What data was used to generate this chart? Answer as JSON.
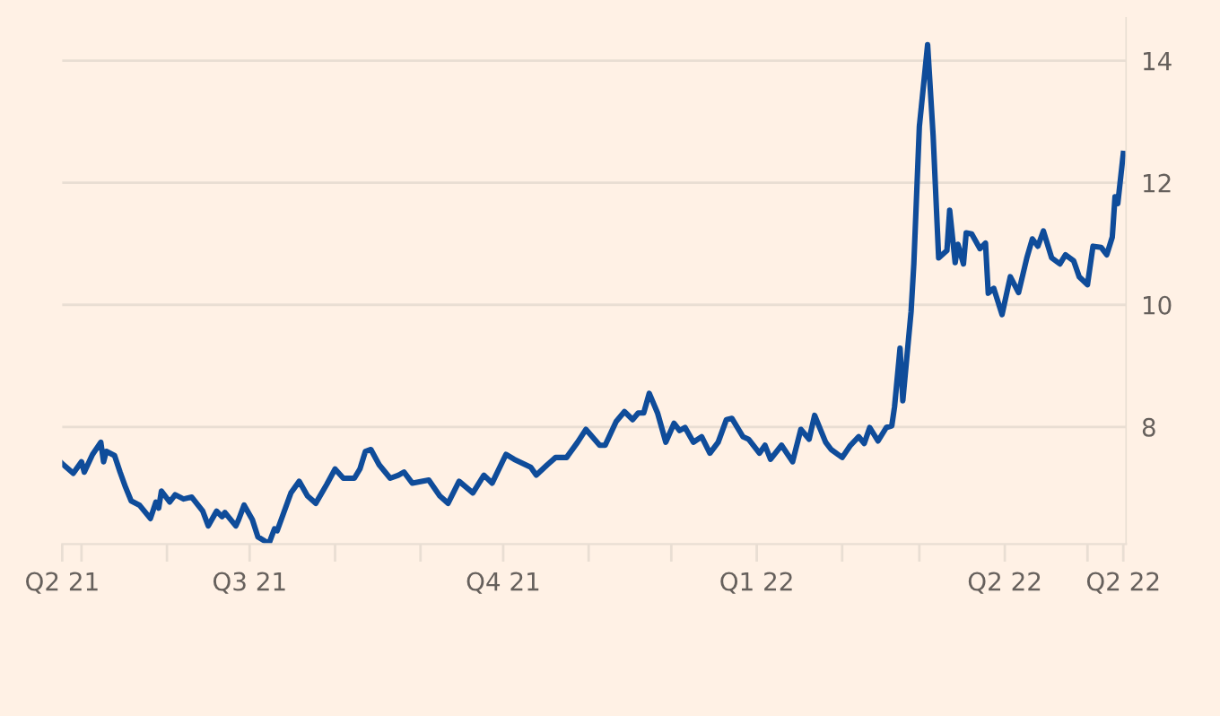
{
  "chart_data": {
    "type": "line",
    "x": [
      "2021-04-24",
      "2021-04-28",
      "2021-05-01",
      "2021-05-02",
      "2021-05-05",
      "2021-05-08",
      "2021-05-09",
      "2021-05-10",
      "2021-05-13",
      "2021-05-15",
      "2021-05-17",
      "2021-05-19",
      "2021-05-22",
      "2021-05-26",
      "2021-05-28",
      "2021-05-29",
      "2021-05-30",
      "2021-06-02",
      "2021-06-04",
      "2021-06-07",
      "2021-06-10",
      "2021-06-14",
      "2021-06-16",
      "2021-06-19",
      "2021-06-21",
      "2021-06-22",
      "2021-06-26",
      "2021-06-27",
      "2021-06-29",
      "2021-07-02",
      "2021-07-04",
      "2021-07-08",
      "2021-07-10",
      "2021-07-11",
      "2021-07-16",
      "2021-07-19",
      "2021-07-22",
      "2021-07-25",
      "2021-07-29",
      "2021-08-01",
      "2021-08-04",
      "2021-08-08",
      "2021-08-10",
      "2021-08-12",
      "2021-08-14",
      "2021-08-17",
      "2021-08-21",
      "2021-08-24",
      "2021-08-26",
      "2021-08-29",
      "2021-09-04",
      "2021-09-08",
      "2021-09-11",
      "2021-09-15",
      "2021-09-20",
      "2021-09-24",
      "2021-09-27",
      "2021-10-02",
      "2021-10-05",
      "2021-10-11",
      "2021-10-13",
      "2021-10-17",
      "2021-10-20",
      "2021-10-24",
      "2021-10-28",
      "2021-10-31",
      "2021-11-05",
      "2021-11-07",
      "2021-11-11",
      "2021-11-14",
      "2021-11-17",
      "2021-11-19",
      "2021-11-21",
      "2021-11-23",
      "2021-11-26",
      "2021-11-29",
      "2021-12-02",
      "2021-12-04",
      "2021-12-06",
      "2021-12-09",
      "2021-12-12",
      "2021-12-15",
      "2021-12-18",
      "2021-12-21",
      "2021-12-23",
      "2021-12-27",
      "2021-12-29",
      "2022-01-02",
      "2022-01-04",
      "2022-01-06",
      "2022-01-10",
      "2022-01-14",
      "2022-01-17",
      "2022-01-20",
      "2022-01-22",
      "2022-01-26",
      "2022-01-28",
      "2022-02-01",
      "2022-02-04",
      "2022-02-07",
      "2022-02-09",
      "2022-02-11",
      "2022-02-14",
      "2022-02-17",
      "2022-02-19",
      "2022-02-20",
      "2022-02-22",
      "2022-02-23",
      "2022-02-26",
      "2022-02-27",
      "2022-03-01",
      "2022-03-04",
      "2022-03-06",
      "2022-03-08",
      "2022-03-11",
      "2022-03-12",
      "2022-03-14",
      "2022-03-15",
      "2022-03-17",
      "2022-03-18",
      "2022-03-20",
      "2022-03-23",
      "2022-03-25",
      "2022-03-26",
      "2022-03-28",
      "2022-03-31",
      "2022-04-03",
      "2022-04-06",
      "2022-04-09",
      "2022-04-11",
      "2022-04-13",
      "2022-04-15",
      "2022-04-18",
      "2022-04-21",
      "2022-04-23",
      "2022-04-26",
      "2022-04-28",
      "2022-05-01",
      "2022-05-03",
      "2022-05-06",
      "2022-05-08",
      "2022-05-10",
      "2022-05-11",
      "2022-05-12",
      "2022-05-14"
    ],
    "series": [
      {
        "color": "#0f4c9a",
        "values": [
          7.4,
          7.24,
          7.43,
          7.26,
          7.55,
          7.75,
          7.43,
          7.6,
          7.53,
          7.26,
          7.01,
          6.79,
          6.72,
          6.5,
          6.77,
          6.67,
          6.95,
          6.77,
          6.89,
          6.82,
          6.85,
          6.62,
          6.38,
          6.62,
          6.53,
          6.6,
          6.38,
          6.48,
          6.72,
          6.48,
          6.2,
          6.09,
          6.33,
          6.3,
          6.92,
          7.11,
          6.87,
          6.75,
          7.06,
          7.31,
          7.16,
          7.16,
          7.31,
          7.6,
          7.63,
          7.38,
          7.16,
          7.21,
          7.26,
          7.08,
          7.13,
          6.87,
          6.75,
          7.11,
          6.92,
          7.21,
          7.08,
          7.55,
          7.47,
          7.34,
          7.21,
          7.38,
          7.5,
          7.5,
          7.75,
          7.96,
          7.7,
          7.7,
          8.09,
          8.25,
          8.12,
          8.23,
          8.23,
          8.55,
          8.23,
          7.75,
          8.06,
          7.94,
          7.99,
          7.75,
          7.84,
          7.57,
          7.75,
          8.12,
          8.14,
          7.84,
          7.8,
          7.57,
          7.7,
          7.47,
          7.7,
          7.43,
          7.96,
          7.8,
          8.19,
          7.75,
          7.63,
          7.5,
          7.7,
          7.84,
          7.73,
          7.99,
          7.77,
          7.99,
          8.02,
          8.33,
          9.29,
          8.43,
          9.89,
          10.67,
          12.92,
          14.26,
          12.77,
          10.77,
          10.89,
          11.55,
          10.69,
          10.99,
          10.67,
          11.18,
          11.16,
          10.92,
          11.01,
          10.19,
          10.27,
          9.84,
          10.46,
          10.2,
          10.77,
          11.08,
          10.96,
          11.21,
          10.77,
          10.67,
          10.82,
          10.72,
          10.46,
          10.33,
          10.96,
          10.94,
          10.82,
          11.11,
          11.77,
          11.66,
          12.48
        ]
      }
    ],
    "xlim": [
      "2021-04-24",
      "2022-05-15"
    ],
    "xticks": [
      {
        "value": "2021-04-24",
        "label": "Q2 21"
      },
      {
        "value": "2021-05-01",
        "label": null
      },
      {
        "value": "2021-06-01",
        "label": null
      },
      {
        "value": "2021-07-01",
        "label": "Q3 21"
      },
      {
        "value": "2021-08-01",
        "label": null
      },
      {
        "value": "2021-09-01",
        "label": null
      },
      {
        "value": "2021-10-01",
        "label": "Q4 21"
      },
      {
        "value": "2021-11-01",
        "label": null
      },
      {
        "value": "2021-12-01",
        "label": null
      },
      {
        "value": "2022-01-01",
        "label": "Q1 22"
      },
      {
        "value": "2022-02-01",
        "label": null
      },
      {
        "value": "2022-03-01",
        "label": null
      },
      {
        "value": "2022-04-01",
        "label": "Q2 22"
      },
      {
        "value": "2022-05-01",
        "label": null
      },
      {
        "value": "2022-05-14",
        "label": "Q2 22"
      }
    ],
    "ylim": [
      6.08,
      14.7
    ],
    "yticks": [
      8,
      10,
      12,
      14
    ],
    "grid": "y",
    "line_style": "solid",
    "marker": "none"
  }
}
